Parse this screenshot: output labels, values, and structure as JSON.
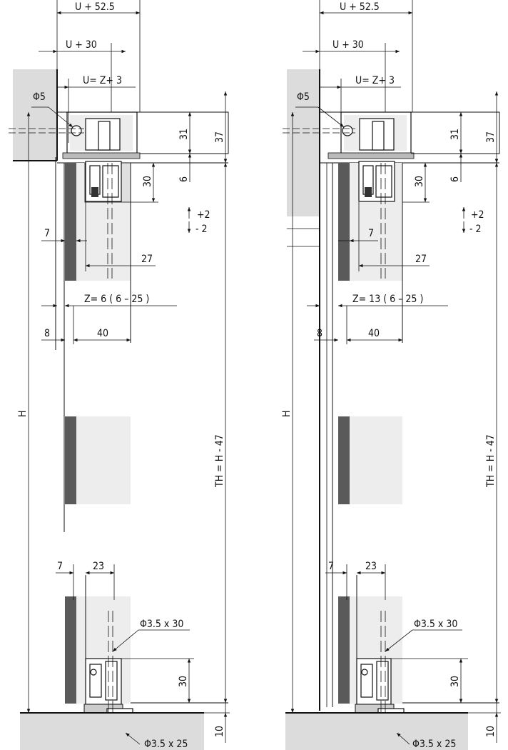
{
  "views": [
    {
      "id": "left",
      "labels": {
        "u_plus_52_5": "U + 52.5",
        "u_plus_30": "U + 30",
        "u_eq_z_plus_3": "U= Z+ 3",
        "phi5": "Φ5",
        "d31": "31",
        "d37": "37",
        "d30_top": "30",
        "d6": "6",
        "adj_plus": "+2",
        "adj_minus": "- 2",
        "d7_mid": "7",
        "d27": "27",
        "z_value": "Z=  6 ( 6  –  25 )",
        "d8": "8",
        "d40": "40",
        "h": "H",
        "th": "TH = H -  47",
        "d7_bot": "7",
        "d23": "23",
        "screw_30": "Φ3.5 x 30",
        "d30_bot": "30",
        "d10": "10",
        "screw_25": "Φ3.5 x 25"
      }
    },
    {
      "id": "right",
      "labels": {
        "u_plus_52_5": "U + 52.5",
        "u_plus_30": "U + 30",
        "u_eq_z_plus_3": "U= Z+ 3",
        "phi5": "Φ5",
        "d31": "31",
        "d37": "37",
        "d30_top": "30",
        "d6": "6",
        "adj_plus": "+2",
        "adj_minus": "- 2",
        "d7_mid": "7",
        "d27": "27",
        "z_value": "Z=  13 ( 6  –  25 )",
        "d8": "8",
        "d40": "40",
        "h": "H",
        "th": "TH = H -  47",
        "d7_bot": "7",
        "d23": "23",
        "screw_30": "Φ3.5 x 30",
        "d30_bot": "30",
        "d10": "10",
        "screw_25": "Φ3.5 x 25"
      }
    }
  ]
}
